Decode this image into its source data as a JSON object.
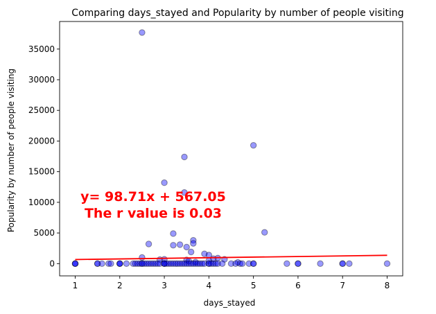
{
  "chart_data": {
    "type": "scatter",
    "title": "Comparing days_stayed and  Popularity by number of people visiting",
    "xlabel": "days_stayed",
    "ylabel": "Popularity by number of people visiting",
    "xlim": [
      0.65,
      8.35
    ],
    "ylim": [
      -2000,
      39500
    ],
    "xticks": [
      1,
      2,
      3,
      4,
      5,
      6,
      7,
      8
    ],
    "yticks": [
      0,
      5000,
      10000,
      15000,
      20000,
      25000,
      30000,
      35000
    ],
    "grid": false,
    "point_color": "#0000ff",
    "line_color": "#ff0000",
    "regression": {
      "slope": 98.71,
      "intercept": 567.05,
      "x_range": [
        1,
        8
      ]
    },
    "annotation": {
      "line1": "y= 98.71x + 567.05",
      "line2": "The r value is 0.03"
    },
    "points": [
      [
        2.5,
        37700
      ],
      [
        5,
        19300
      ],
      [
        3.45,
        17400
      ],
      [
        3,
        13200
      ],
      [
        3.45,
        11600
      ],
      [
        5.25,
        5100
      ],
      [
        3.2,
        4900
      ],
      [
        3.65,
        3800
      ],
      [
        3.65,
        3300
      ],
      [
        2.65,
        3200
      ],
      [
        3.2,
        3000
      ],
      [
        3.35,
        3100
      ],
      [
        3.5,
        2700
      ],
      [
        3.6,
        1900
      ],
      [
        3.9,
        1600
      ],
      [
        4,
        1400
      ],
      [
        2.5,
        1000
      ],
      [
        4.2,
        900
      ],
      [
        4.1,
        800
      ],
      [
        4.35,
        700
      ],
      [
        3.5,
        600
      ],
      [
        2.9,
        650
      ],
      [
        3.0,
        700
      ],
      [
        4.0,
        500
      ],
      [
        3.55,
        400
      ],
      [
        3.7,
        250
      ],
      [
        4.65,
        200
      ],
      [
        1,
        0
      ],
      [
        1,
        0
      ],
      [
        1,
        0
      ],
      [
        1.5,
        0
      ],
      [
        1.5,
        0
      ],
      [
        1.6,
        0
      ],
      [
        1.75,
        0
      ],
      [
        1.8,
        0
      ],
      [
        2,
        0
      ],
      [
        2,
        0
      ],
      [
        2,
        0
      ],
      [
        2.15,
        0
      ],
      [
        2.3,
        0
      ],
      [
        2.35,
        0
      ],
      [
        2.4,
        0
      ],
      [
        2.45,
        0
      ],
      [
        2.5,
        0
      ],
      [
        2.5,
        0
      ],
      [
        2.55,
        0
      ],
      [
        2.6,
        0
      ],
      [
        2.65,
        0
      ],
      [
        2.7,
        0
      ],
      [
        2.75,
        0
      ],
      [
        2.8,
        0
      ],
      [
        2.85,
        0
      ],
      [
        2.9,
        0
      ],
      [
        3,
        0
      ],
      [
        3,
        0
      ],
      [
        3,
        0
      ],
      [
        3.05,
        0
      ],
      [
        3.1,
        0
      ],
      [
        3.15,
        0
      ],
      [
        3.2,
        0
      ],
      [
        3.25,
        0
      ],
      [
        3.3,
        0
      ],
      [
        3.35,
        0
      ],
      [
        3.4,
        0
      ],
      [
        3.45,
        0
      ],
      [
        3.5,
        0
      ],
      [
        3.55,
        0
      ],
      [
        3.6,
        0
      ],
      [
        3.65,
        0
      ],
      [
        3.7,
        0
      ],
      [
        3.75,
        0
      ],
      [
        3.8,
        0
      ],
      [
        3.85,
        0
      ],
      [
        3.9,
        0
      ],
      [
        4,
        0
      ],
      [
        4,
        0
      ],
      [
        4.05,
        0
      ],
      [
        4.1,
        0
      ],
      [
        4.15,
        0
      ],
      [
        4.2,
        0
      ],
      [
        4.3,
        0
      ],
      [
        4.5,
        0
      ],
      [
        4.6,
        0
      ],
      [
        4.7,
        0
      ],
      [
        4.75,
        0
      ],
      [
        4.9,
        0
      ],
      [
        5,
        0
      ],
      [
        5,
        0
      ],
      [
        5.75,
        0
      ],
      [
        6,
        0
      ],
      [
        6,
        0
      ],
      [
        6.5,
        0
      ],
      [
        7,
        0
      ],
      [
        7,
        0
      ],
      [
        7.15,
        0
      ],
      [
        8,
        0
      ]
    ]
  }
}
